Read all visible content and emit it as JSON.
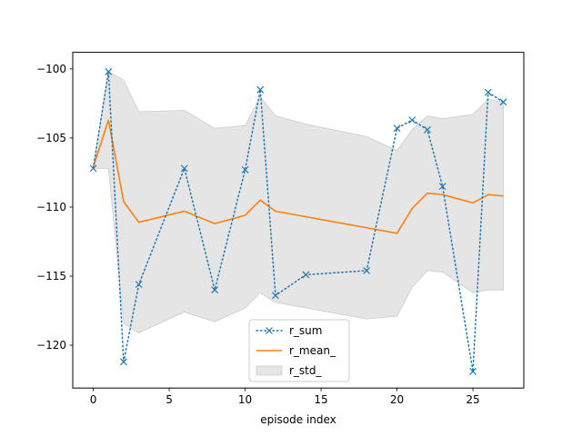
{
  "chart_data": {
    "type": "line",
    "title": "",
    "xlabel": "episode index",
    "ylabel": "",
    "xlim": [
      -1.35,
      28.35
    ],
    "ylim": [
      -123.1,
      -98.8
    ],
    "xticks": [
      0,
      5,
      10,
      15,
      20,
      25
    ],
    "yticks": [
      -120,
      -115,
      -110,
      -105,
      -100
    ],
    "grid": false,
    "legend_position": "lower-center",
    "x": [
      0,
      1,
      2,
      3,
      6,
      8,
      10,
      11,
      12,
      14,
      18,
      20,
      21,
      22,
      23,
      25,
      26,
      27
    ],
    "series": [
      {
        "name": "r_sum",
        "style": "dotted-with-x-markers",
        "color": "#1f77b4",
        "values": [
          -107.2,
          -100.2,
          -121.2,
          -115.6,
          -107.2,
          -116.0,
          -107.3,
          -101.5,
          -116.4,
          -114.9,
          -114.6,
          -104.3,
          -103.7,
          -104.4,
          -108.5,
          -121.9,
          -101.7,
          -102.4
        ]
      },
      {
        "name": "r_mean_",
        "style": "solid",
        "color": "#ff7f0e",
        "values": [
          -107.1,
          -103.7,
          -109.6,
          -111.1,
          -110.3,
          -111.2,
          -110.6,
          -109.5,
          -110.3,
          -110.7,
          -111.5,
          -111.9,
          -110.1,
          -109.0,
          -109.1,
          -109.7,
          -109.1,
          -109.2
        ]
      }
    ],
    "band": {
      "name": "r_std_",
      "color": "#e5e5e5",
      "edge_color": "#cccccc",
      "upper": [
        -107.1,
        -100.2,
        -100.8,
        -103.1,
        -103.0,
        -104.3,
        -104.1,
        -102.0,
        -103.4,
        -104.0,
        -104.9,
        -105.9,
        -104.4,
        -103.4,
        -103.6,
        -103.3,
        -102.2,
        -102.4
      ],
      "lower": [
        -107.2,
        -107.2,
        -118.4,
        -119.1,
        -117.6,
        -118.3,
        -117.3,
        -116.2,
        -116.9,
        -117.3,
        -118.1,
        -117.9,
        -115.8,
        -114.6,
        -114.7,
        -116.2,
        -116.0,
        -116.0
      ]
    }
  }
}
